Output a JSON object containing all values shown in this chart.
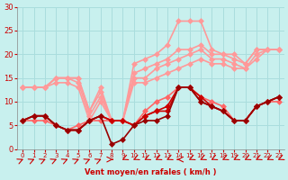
{
  "title": "",
  "xlabel": "Vent moyen/en rafales ( km/h )",
  "ylabel": "",
  "bg_color": "#c8f0ee",
  "grid_color": "#aadddd",
  "xlim": [
    0,
    23
  ],
  "ylim": [
    0,
    30
  ],
  "yticks": [
    0,
    5,
    10,
    15,
    20,
    25,
    30
  ],
  "xticks": [
    0,
    1,
    2,
    3,
    4,
    5,
    6,
    7,
    8,
    9,
    10,
    11,
    12,
    13,
    14,
    15,
    16,
    17,
    18,
    19,
    20,
    21,
    22,
    23
  ],
  "lines": [
    {
      "name": "rafales_high",
      "color": "#ff9999",
      "lw": 1.2,
      "marker": "D",
      "ms": 3,
      "x": [
        0,
        1,
        2,
        3,
        4,
        5,
        6,
        7,
        8,
        9,
        10,
        11,
        12,
        13,
        14,
        15,
        16,
        17,
        18,
        19,
        20,
        21,
        22,
        23
      ],
      "y": [
        13,
        13,
        13,
        15,
        15,
        15,
        8,
        13,
        6,
        6,
        18,
        19,
        20,
        22,
        27,
        27,
        27,
        21,
        20,
        20,
        18,
        21,
        21,
        21
      ]
    },
    {
      "name": "rafales_mid1",
      "color": "#ff9999",
      "lw": 1.2,
      "marker": "D",
      "ms": 3,
      "x": [
        0,
        1,
        2,
        3,
        4,
        5,
        6,
        7,
        8,
        9,
        10,
        11,
        12,
        13,
        14,
        15,
        16,
        17,
        18,
        19,
        20,
        21,
        22,
        23
      ],
      "y": [
        13,
        13,
        13,
        15,
        15,
        15,
        8,
        12,
        6,
        6,
        16,
        17,
        18,
        19,
        21,
        21,
        22,
        20,
        20,
        19,
        18,
        21,
        21,
        21
      ]
    },
    {
      "name": "rafales_mid2",
      "color": "#ff9999",
      "lw": 1.2,
      "marker": "D",
      "ms": 3,
      "x": [
        0,
        1,
        2,
        3,
        4,
        5,
        6,
        7,
        8,
        9,
        10,
        11,
        12,
        13,
        14,
        15,
        16,
        17,
        18,
        19,
        20,
        21,
        22,
        23
      ],
      "y": [
        13,
        13,
        13,
        15,
        15,
        14,
        7,
        11,
        6,
        6,
        15,
        15,
        17,
        18,
        19,
        20,
        21,
        19,
        19,
        18,
        17,
        20,
        21,
        21
      ]
    },
    {
      "name": "rafales_low",
      "color": "#ff9999",
      "lw": 1.2,
      "marker": "D",
      "ms": 3,
      "x": [
        0,
        1,
        2,
        3,
        4,
        5,
        6,
        7,
        8,
        9,
        10,
        11,
        12,
        13,
        14,
        15,
        16,
        17,
        18,
        19,
        20,
        21,
        22,
        23
      ],
      "y": [
        13,
        13,
        13,
        14,
        14,
        13,
        6,
        10,
        6,
        6,
        14,
        14,
        15,
        16,
        17,
        18,
        19,
        18,
        18,
        17,
        17,
        19,
        21,
        21
      ]
    },
    {
      "name": "vent_peak",
      "color": "#ff6666",
      "lw": 1.2,
      "marker": "D",
      "ms": 3,
      "x": [
        0,
        1,
        2,
        3,
        4,
        5,
        6,
        7,
        8,
        9,
        10,
        11,
        12,
        13,
        14,
        15,
        16,
        17,
        18,
        19,
        20,
        21,
        22,
        23
      ],
      "y": [
        6,
        6,
        6,
        5,
        4,
        5,
        6,
        6,
        6,
        6,
        5,
        8,
        10,
        11,
        13,
        13,
        11,
        10,
        9,
        6,
        6,
        9,
        10,
        10
      ]
    },
    {
      "name": "vent_mid1",
      "color": "#cc0000",
      "lw": 1.2,
      "marker": "D",
      "ms": 3,
      "x": [
        0,
        1,
        2,
        3,
        4,
        5,
        6,
        7,
        8,
        9,
        10,
        11,
        12,
        13,
        14,
        15,
        16,
        17,
        18,
        19,
        20,
        21,
        22,
        23
      ],
      "y": [
        6,
        7,
        7,
        5,
        4,
        4,
        6,
        7,
        6,
        6,
        5,
        7,
        8,
        9,
        13,
        13,
        11,
        9,
        8,
        6,
        6,
        9,
        10,
        11
      ]
    },
    {
      "name": "vent_mid2",
      "color": "#cc0000",
      "lw": 1.2,
      "marker": "D",
      "ms": 3,
      "x": [
        0,
        1,
        2,
        3,
        4,
        5,
        6,
        7,
        8,
        9,
        10,
        11,
        12,
        13,
        14,
        15,
        16,
        17,
        18,
        19,
        20,
        21,
        22,
        23
      ],
      "y": [
        6,
        7,
        7,
        5,
        4,
        4,
        6,
        7,
        6,
        6,
        5,
        7,
        8,
        8,
        13,
        13,
        10,
        9,
        8,
        6,
        6,
        9,
        10,
        11
      ]
    },
    {
      "name": "vent_low",
      "color": "#990000",
      "lw": 1.2,
      "marker": "D",
      "ms": 3,
      "x": [
        0,
        1,
        2,
        3,
        4,
        5,
        6,
        7,
        8,
        9,
        10,
        11,
        12,
        13,
        14,
        15,
        16,
        17,
        18,
        19,
        20,
        21,
        22,
        23
      ],
      "y": [
        6,
        7,
        7,
        5,
        4,
        4,
        6,
        7,
        1,
        2,
        5,
        6,
        6,
        7,
        13,
        13,
        10,
        9,
        8,
        6,
        6,
        9,
        10,
        11
      ]
    }
  ],
  "arrows": {
    "x": [
      0,
      1,
      2,
      3,
      4,
      5,
      6,
      7,
      8,
      9,
      10,
      11,
      12,
      13,
      14,
      15,
      16,
      17,
      18,
      19,
      20,
      21,
      22,
      23
    ],
    "angles_deg": [
      45,
      45,
      45,
      45,
      45,
      45,
      45,
      45,
      90,
      225,
      225,
      225,
      225,
      225,
      270,
      225,
      225,
      225,
      225,
      225,
      225,
      225,
      225,
      225
    ],
    "color": "#cc0000"
  }
}
